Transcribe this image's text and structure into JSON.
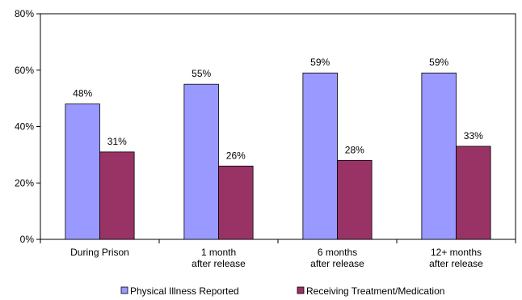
{
  "chart_data": {
    "type": "bar",
    "categories": [
      [
        "During Prison"
      ],
      [
        "1 month",
        "after release"
      ],
      [
        "6 months",
        "after release"
      ],
      [
        "12+ months",
        "after release"
      ]
    ],
    "series": [
      {
        "name": "Physical Illness Reported",
        "values": [
          48,
          55,
          59,
          59
        ],
        "color": "#9999FF",
        "labels": [
          "48%",
          "55%",
          "59%",
          "59%"
        ]
      },
      {
        "name": "Receiving Treatment/Medication",
        "values": [
          31,
          26,
          28,
          33
        ],
        "color": "#993366",
        "labels": [
          "31%",
          "26%",
          "28%",
          "33%"
        ]
      }
    ],
    "ylim": [
      0,
      80
    ],
    "yticks": [
      0,
      20,
      40,
      60,
      80
    ],
    "ytick_labels": [
      "0%",
      "20%",
      "40%",
      "60%",
      "80%"
    ],
    "grid": false,
    "legend_position": "bottom"
  }
}
